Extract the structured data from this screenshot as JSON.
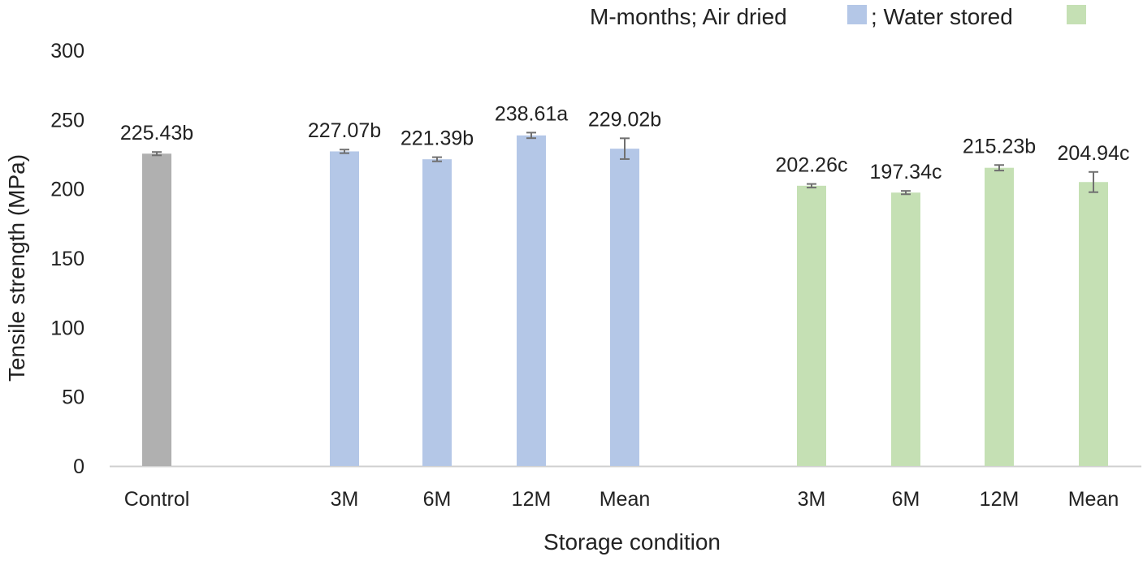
{
  "chart_data": {
    "type": "bar",
    "title": "",
    "xlabel": "Storage condition",
    "ylabel": "Tensile strength (MPa)",
    "ylim": [
      0,
      300
    ],
    "yticks": [
      0,
      50,
      100,
      150,
      200,
      250,
      300
    ],
    "grid": false,
    "legend_position": "top-right",
    "legend": {
      "prefix": "M-months; Air dried",
      "separator": "; Water stored",
      "items": [
        {
          "name": "Air dried",
          "color": "#b4c7e7"
        },
        {
          "name": "Water stored",
          "color": "#c5e0b4"
        }
      ]
    },
    "bars": [
      {
        "category": "Control",
        "group": "control",
        "value": 225.43,
        "error": 1.2,
        "label": "225.43b",
        "color": "#b0b0b0"
      },
      {
        "category": "3M",
        "group": "air",
        "value": 227.07,
        "error": 1.3,
        "label": "227.07b",
        "color": "#b4c7e7"
      },
      {
        "category": "6M",
        "group": "air",
        "value": 221.39,
        "error": 1.5,
        "label": "221.39b",
        "color": "#b4c7e7"
      },
      {
        "category": "12M",
        "group": "air",
        "value": 238.61,
        "error": 2.0,
        "label": "238.61a",
        "color": "#b4c7e7"
      },
      {
        "category": "Mean",
        "group": "air",
        "value": 229.02,
        "error": 7.5,
        "label": "229.02b",
        "color": "#b4c7e7"
      },
      {
        "category": "3M",
        "group": "water",
        "value": 202.26,
        "error": 1.3,
        "label": "202.26c",
        "color": "#c5e0b4"
      },
      {
        "category": "6M",
        "group": "water",
        "value": 197.34,
        "error": 1.2,
        "label": "197.34c",
        "color": "#c5e0b4"
      },
      {
        "category": "12M",
        "group": "water",
        "value": 215.23,
        "error": 2.0,
        "label": "215.23b",
        "color": "#c5e0b4"
      },
      {
        "category": "Mean",
        "group": "water",
        "value": 204.94,
        "error": 7.3,
        "label": "204.94c",
        "color": "#c5e0b4"
      }
    ],
    "colors": {
      "axis": "#d0d0d0",
      "error_bar": "#707070"
    }
  }
}
